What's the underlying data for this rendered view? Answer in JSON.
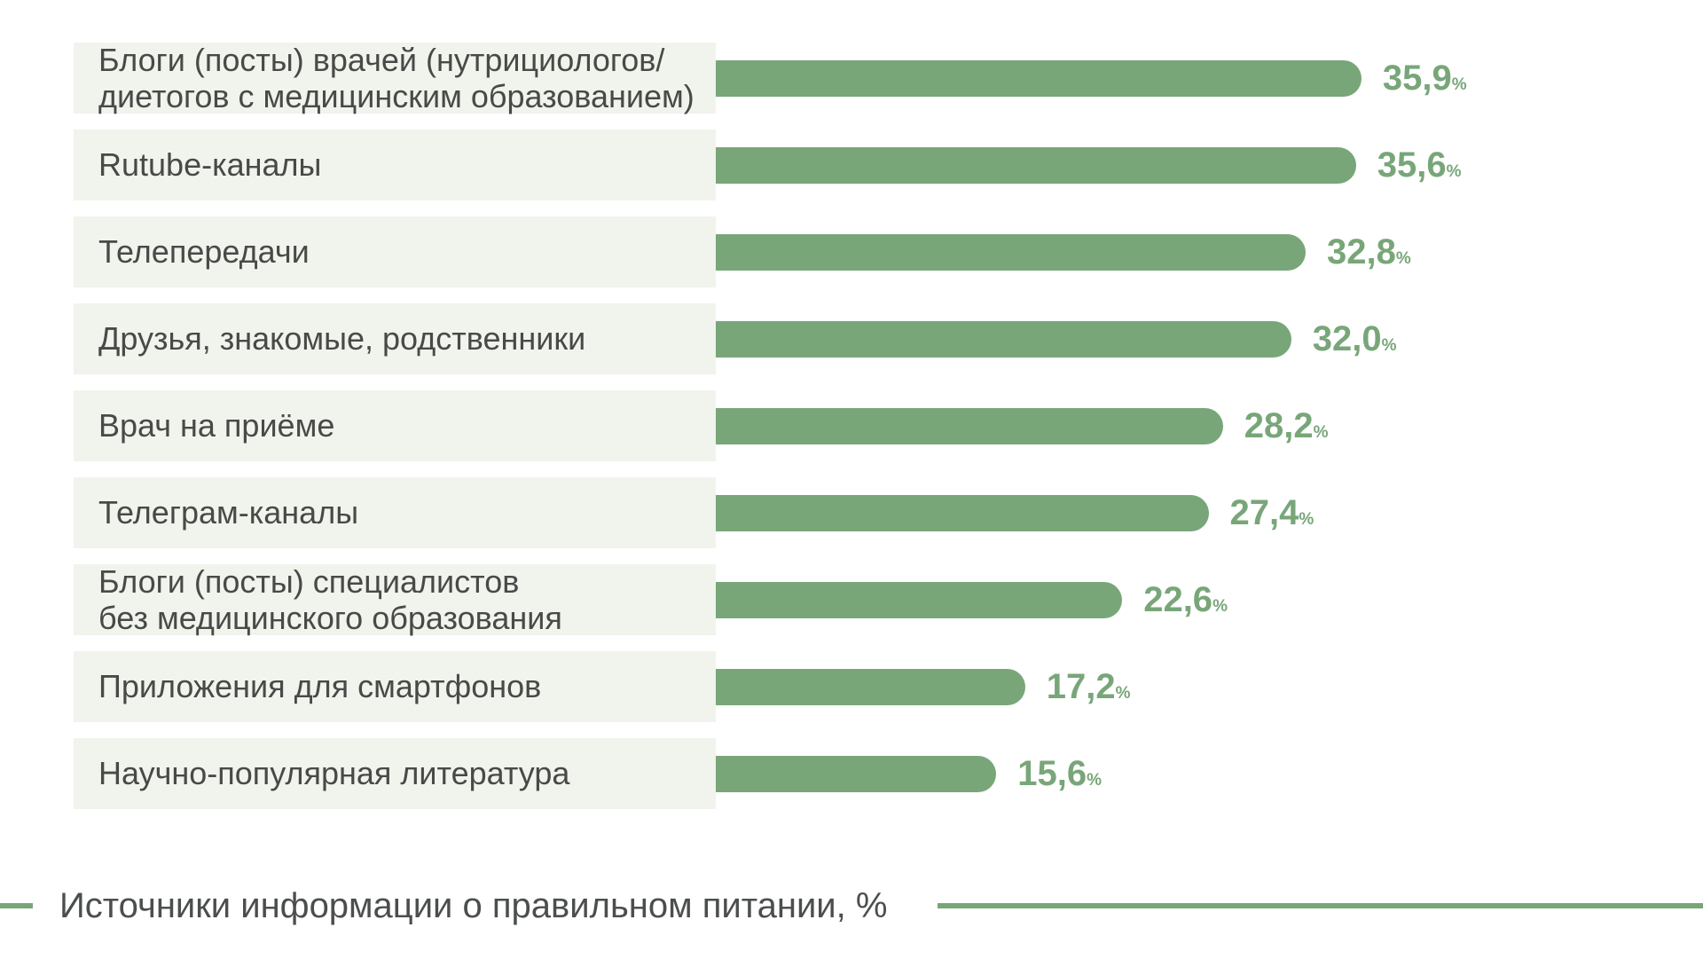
{
  "chart_data": {
    "type": "bar",
    "orientation": "horizontal",
    "title": "Источники информации о правильном питании, %",
    "unit": "%",
    "categories": [
      "Блоги (посты) врачей (нутрициологов/\nдиетогов с медицинским образованием)",
      "Rutube-каналы",
      "Телепередачи",
      "Друзья, знакомые, родственники",
      "Врач на приёме",
      "Телеграм-каналы",
      "Блоги (посты) специалистов\nбез медицинского образования",
      "Приложения для смартфонов",
      "Научно-популярная литература"
    ],
    "values": [
      35.9,
      35.6,
      32.8,
      32.0,
      28.2,
      27.4,
      22.6,
      17.2,
      15.6
    ],
    "value_labels": [
      "35,9",
      "35,6",
      "32,8",
      "32,0",
      "28,2",
      "27,4",
      "22,6",
      "17,2",
      "15,6"
    ],
    "xlim": [
      0,
      40
    ],
    "grid": false,
    "legend_position": "none",
    "value_label_position": "end-of-bar",
    "colors": {
      "bar": "#78a679",
      "value_text": "#78a679",
      "label_bg": "#f0f4ed",
      "label_text": "#474a47",
      "title_text": "#4b4f4b",
      "rule": "#78a679"
    }
  }
}
